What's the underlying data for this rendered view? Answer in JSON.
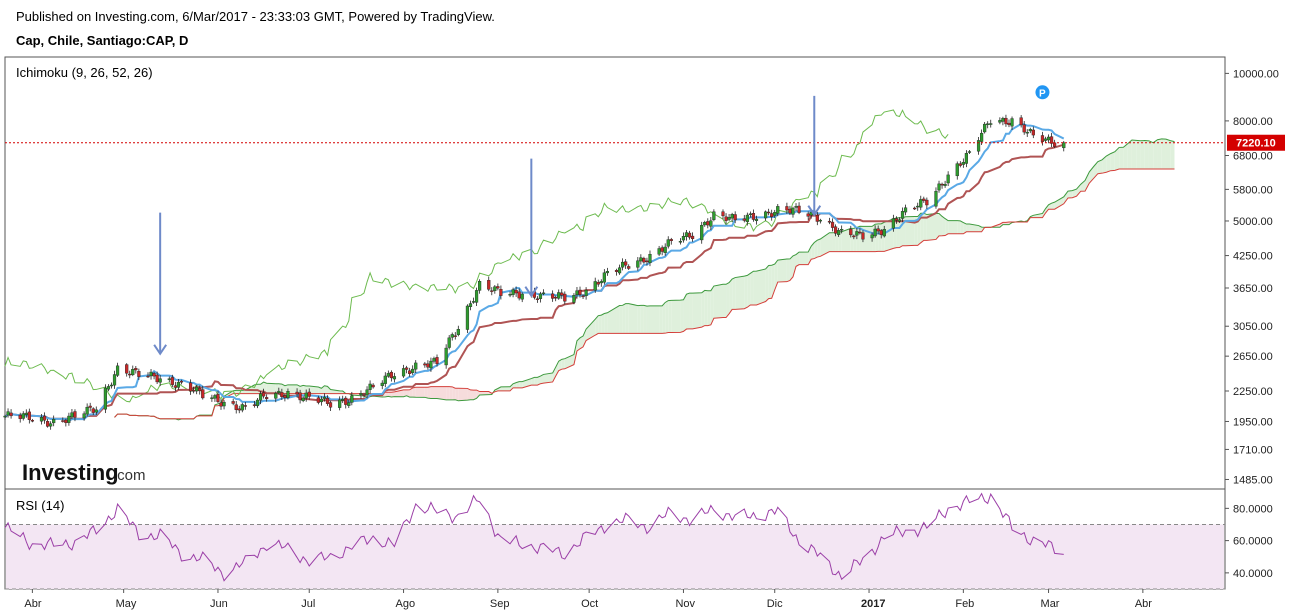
{
  "header": {
    "published": "Published on Investing.com, 6/Mar/2017 - 23:33:03 GMT, Powered by TradingView.",
    "symbol": "Cap, Chile, Santiago:CAP, D"
  },
  "logo": {
    "brand": "Investing",
    "suffix": ".com"
  },
  "colors": {
    "bull": "#2e9b2e",
    "bear": "#c62828",
    "tenkan": "#5aa9e6",
    "kijun": "#b05454",
    "span_a": "#3e9a3e",
    "span_b": "#d43f3a",
    "chikou": "#6dbb4f",
    "rsi": "#9b3fa7",
    "price_line": "#d40000",
    "marker": "#2196f3"
  },
  "chart_data": [
    {
      "type": "candlestick",
      "indicator_label": "Ichimoku (9, 26, 52, 26)",
      "last_price_label": "7220.10",
      "last_price": 7220.1,
      "yscale": "log",
      "ylim": [
        1420,
        10800
      ],
      "yticks": [
        "10000.00",
        "8000.00",
        "6800.00",
        "5800.00",
        "5000.00",
        "4250.00",
        "3650.00",
        "3050.00",
        "2650.00",
        "2250.00",
        "1950.00",
        "1710.00",
        "1485.00"
      ],
      "x_ticks": [
        "Abr",
        "May",
        "Jun",
        "Jul",
        "Ago",
        "Sep",
        "Oct",
        "Nov",
        "Dic",
        "2017",
        "Feb",
        "Mar",
        "Abr"
      ],
      "marker_label": "P",
      "arrows": [
        {
          "date": "2016-05-13",
          "y_from": 5200,
          "y_to": 2680
        },
        {
          "date": "2016-09-12",
          "y_from": 6700,
          "y_to": 3520
        },
        {
          "date": "2016-12-14",
          "y_from": 9000,
          "y_to": 5150
        }
      ],
      "close_points": [
        [
          "2016-03-23",
          2000
        ],
        [
          "2016-04-01",
          1980
        ],
        [
          "2016-04-08",
          1950
        ],
        [
          "2016-04-15",
          1990
        ],
        [
          "2016-04-22",
          2080
        ],
        [
          "2016-04-29",
          2500
        ],
        [
          "2016-05-06",
          2420
        ],
        [
          "2016-05-13",
          2400
        ],
        [
          "2016-05-20",
          2320
        ],
        [
          "2016-05-27",
          2200
        ],
        [
          "2016-06-03",
          2140
        ],
        [
          "2016-06-10",
          2070
        ],
        [
          "2016-06-17",
          2200
        ],
        [
          "2016-06-24",
          2240
        ],
        [
          "2016-07-01",
          2170
        ],
        [
          "2016-07-08",
          2120
        ],
        [
          "2016-07-15",
          2180
        ],
        [
          "2016-07-22",
          2280
        ],
        [
          "2016-07-29",
          2450
        ],
        [
          "2016-08-05",
          2530
        ],
        [
          "2016-08-12",
          2560
        ],
        [
          "2016-08-19",
          3050
        ],
        [
          "2016-08-26",
          3700
        ],
        [
          "2016-09-02",
          3550
        ],
        [
          "2016-09-09",
          3580
        ],
        [
          "2016-09-16",
          3500
        ],
        [
          "2016-09-23",
          3480
        ],
        [
          "2016-09-30",
          3620
        ],
        [
          "2016-10-07",
          3880
        ],
        [
          "2016-10-14",
          4080
        ],
        [
          "2016-10-21",
          4250
        ],
        [
          "2016-10-28",
          4500
        ],
        [
          "2016-11-04",
          4700
        ],
        [
          "2016-11-11",
          5150
        ],
        [
          "2016-11-18",
          5000
        ],
        [
          "2016-11-25",
          5150
        ],
        [
          "2016-12-02",
          5250
        ],
        [
          "2016-12-09",
          5220
        ],
        [
          "2016-12-16",
          5100
        ],
        [
          "2016-12-23",
          4700
        ],
        [
          "2016-12-30",
          4650
        ],
        [
          "2017-01-06",
          4850
        ],
        [
          "2017-01-13",
          5200
        ],
        [
          "2017-01-20",
          5500
        ],
        [
          "2017-01-27",
          6200
        ],
        [
          "2017-02-03",
          6800
        ],
        [
          "2017-02-10",
          8100
        ],
        [
          "2017-02-17",
          8000
        ],
        [
          "2017-02-24",
          7400
        ],
        [
          "2017-03-06",
          7220
        ]
      ]
    },
    {
      "type": "line",
      "indicator_label": "RSI (14)",
      "ylim": [
        30,
        92
      ],
      "yticks": [
        "80.0000",
        "60.0000",
        "40.0000"
      ],
      "band": [
        30,
        70
      ],
      "points": [
        [
          "2016-03-23",
          68
        ],
        [
          "2016-04-01",
          58
        ],
        [
          "2016-04-08",
          57
        ],
        [
          "2016-04-15",
          59
        ],
        [
          "2016-04-22",
          66
        ],
        [
          "2016-04-29",
          80
        ],
        [
          "2016-05-06",
          64
        ],
        [
          "2016-05-13",
          63
        ],
        [
          "2016-05-20",
          52
        ],
        [
          "2016-05-27",
          48
        ],
        [
          "2016-06-03",
          40
        ],
        [
          "2016-06-10",
          46
        ],
        [
          "2016-06-17",
          58
        ],
        [
          "2016-06-24",
          55
        ],
        [
          "2016-07-01",
          47
        ],
        [
          "2016-07-08",
          50
        ],
        [
          "2016-07-15",
          56
        ],
        [
          "2016-07-22",
          62
        ],
        [
          "2016-07-29",
          57
        ],
        [
          "2016-08-05",
          82
        ],
        [
          "2016-08-12",
          78
        ],
        [
          "2016-08-19",
          75
        ],
        [
          "2016-08-26",
          86
        ],
        [
          "2016-09-02",
          60
        ],
        [
          "2016-09-09",
          58
        ],
        [
          "2016-09-16",
          55
        ],
        [
          "2016-09-23",
          52
        ],
        [
          "2016-09-30",
          62
        ],
        [
          "2016-10-07",
          70
        ],
        [
          "2016-10-14",
          73
        ],
        [
          "2016-10-21",
          68
        ],
        [
          "2016-10-28",
          78
        ],
        [
          "2016-11-04",
          72
        ],
        [
          "2016-11-11",
          80
        ],
        [
          "2016-11-18",
          74
        ],
        [
          "2016-11-25",
          76
        ],
        [
          "2016-12-02",
          78
        ],
        [
          "2016-12-09",
          60
        ],
        [
          "2016-12-16",
          50
        ],
        [
          "2016-12-23",
          38
        ],
        [
          "2016-12-30",
          48
        ],
        [
          "2017-01-06",
          62
        ],
        [
          "2017-01-13",
          66
        ],
        [
          "2017-01-20",
          68
        ],
        [
          "2017-01-27",
          80
        ],
        [
          "2017-02-03",
          84
        ],
        [
          "2017-02-10",
          88
        ],
        [
          "2017-02-17",
          68
        ],
        [
          "2017-02-24",
          60
        ],
        [
          "2017-03-06",
          53
        ]
      ]
    }
  ]
}
